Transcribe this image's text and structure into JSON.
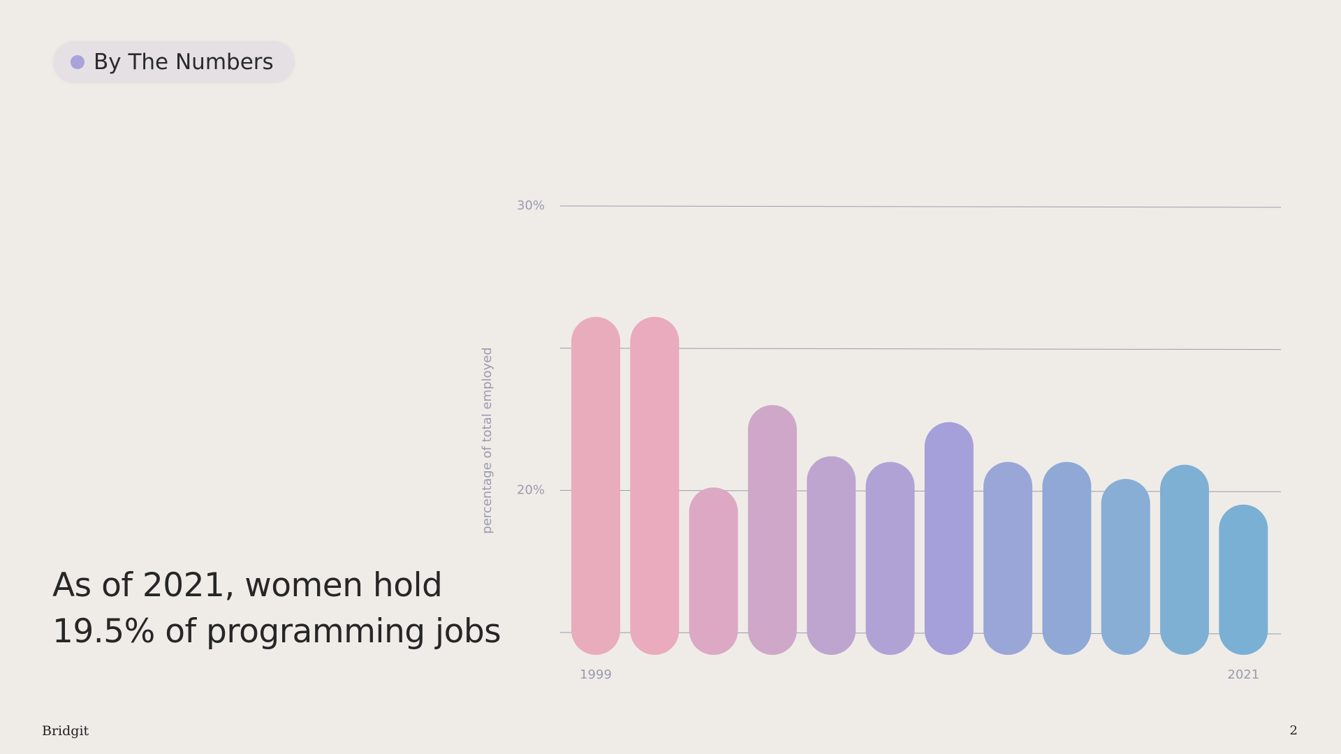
{
  "badge": "By The Numbers",
  "headline": [
    "As of 2021, women hold",
    "19.5% of programming jobs"
  ],
  "footer": {
    "brand": "Bridgit",
    "page": "2"
  },
  "chart_data": {
    "type": "bar",
    "y_label": "percentage of total employed",
    "categories": [
      "1999",
      null,
      null,
      null,
      null,
      null,
      null,
      null,
      null,
      null,
      null,
      "2021"
    ],
    "values": [
      26.1,
      26.1,
      20.1,
      23.0,
      21.2,
      21.0,
      22.4,
      21.0,
      21.0,
      20.4,
      20.9,
      19.5
    ],
    "colors": [
      "#e9acbd",
      "#e9abbd",
      "#dca8c4",
      "#cfa8c9",
      "#bea5cf",
      "#b1a2d6",
      "#a5a0d9",
      "#9aa6d8",
      "#8fa8d6",
      "#88aed6",
      "#7eb0d4",
      "#7ab0d4"
    ],
    "ylim": [
      15,
      30
    ],
    "yticks": [
      {
        "value": 20,
        "label": "20%"
      },
      {
        "value": 30,
        "label": "30%"
      }
    ],
    "gridlines": [
      15,
      20,
      25,
      30
    ],
    "grid": true
  }
}
